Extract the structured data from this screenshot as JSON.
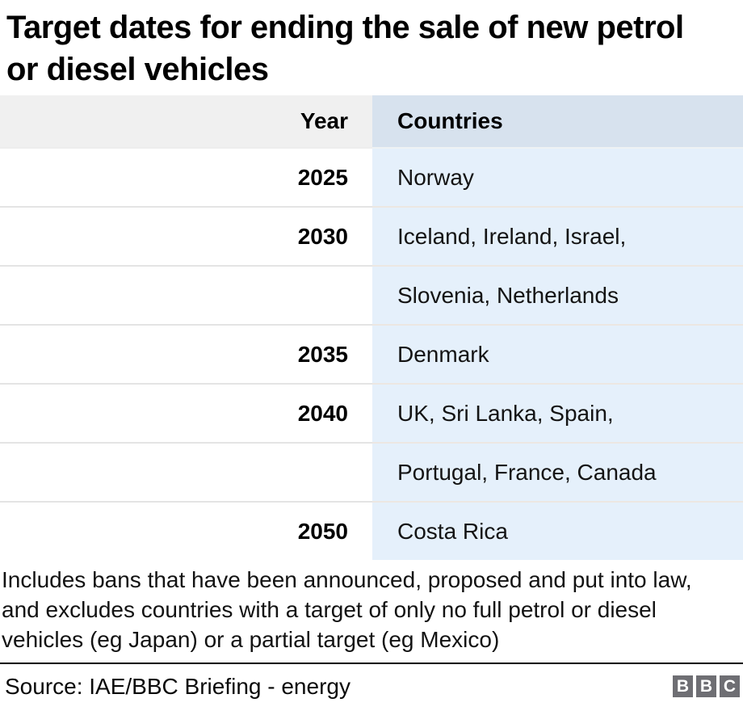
{
  "title": "Target dates for ending the sale of new petrol or diesel vehicles",
  "table": {
    "header": {
      "year": "Year",
      "countries": "Countries"
    },
    "display_rows": [
      {
        "year": "2025",
        "countries": "Norway"
      },
      {
        "year": "2030",
        "countries": "Iceland, Ireland, Israel,"
      },
      {
        "year": "",
        "countries": "Slovenia, Netherlands"
      },
      {
        "year": "2035",
        "countries": "Denmark"
      },
      {
        "year": "2040",
        "countries": "UK, Sri Lanka, Spain,"
      },
      {
        "year": "",
        "countries": "Portugal, France, Canada"
      },
      {
        "year": "2050",
        "countries": "Costa Rica"
      }
    ]
  },
  "chart_data": {
    "type": "table",
    "title": "Target dates for ending the sale of new petrol or diesel vehicles",
    "columns": [
      "Year",
      "Countries"
    ],
    "rows": [
      [
        "2025",
        "Norway"
      ],
      [
        "2030",
        "Iceland, Ireland, Israel, Slovenia, Netherlands"
      ],
      [
        "2035",
        "Denmark"
      ],
      [
        "2040",
        "UK, Sri Lanka, Spain, Portugal, France, Canada"
      ],
      [
        "2050",
        "Costa Rica"
      ]
    ]
  },
  "footnote": "Includes bans that have been announced, proposed and put into law, and excludes countries with a target of only no full petrol or diesel vehicles (eg Japan) or a partial target (eg Mexico)",
  "source": "Source: IAE/BBC Briefing - energy",
  "logo": {
    "letters": [
      "B",
      "B",
      "C"
    ]
  },
  "colors": {
    "header_year_bg": "#f0f0f0",
    "header_countries_bg": "#d7e2ee",
    "body_countries_bg": "#e5f0fb",
    "divider_year": "#e4e4e4",
    "divider_countries": "#ece7e2",
    "source_rule": "#000000",
    "bbc_logo_block": "#6e6e73"
  }
}
